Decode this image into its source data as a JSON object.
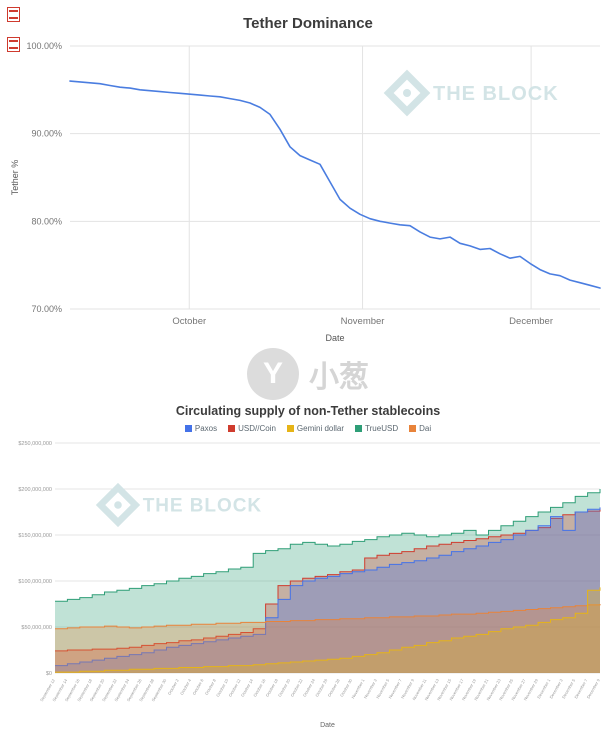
{
  "stamps": {
    "color": "#cf3a2e"
  },
  "watermark_center": {
    "text": "小葱",
    "logo_letter": "Y"
  },
  "chart_data": [
    {
      "type": "line",
      "title": "Tether Dominance",
      "xlabel": "Date",
      "ylabel": "Tether %",
      "watermark": "THE BLOCK",
      "line_color": "#4a7de0",
      "grid": true,
      "ylim": [
        70,
        100
      ],
      "y_ticks": [
        "100.00%",
        "90.00%",
        "80.00%",
        "70.00%"
      ],
      "x_ticks": [
        {
          "label": "October",
          "f": 0.225
        },
        {
          "label": "November",
          "f": 0.552
        },
        {
          "label": "December",
          "f": 0.87
        }
      ],
      "values": [
        96.0,
        95.9,
        95.8,
        95.7,
        95.5,
        95.3,
        95.2,
        95.0,
        94.9,
        94.8,
        94.7,
        94.6,
        94.5,
        94.4,
        94.3,
        94.2,
        94.0,
        93.8,
        93.5,
        93.0,
        92.2,
        90.5,
        88.5,
        87.5,
        87.0,
        86.5,
        84.5,
        82.5,
        81.5,
        80.8,
        80.3,
        80.0,
        79.8,
        79.6,
        79.5,
        78.8,
        78.2,
        78.0,
        78.2,
        77.5,
        77.2,
        76.8,
        76.9,
        76.3,
        75.8,
        76.0,
        75.2,
        74.5,
        74.0,
        73.8,
        73.3,
        73.0,
        72.7,
        72.4
      ]
    },
    {
      "type": "area",
      "title": "Circulating supply of non-Tether stablecoins",
      "xlabel": "Date",
      "unit": "USD",
      "watermark": "THE BLOCK",
      "grid": true,
      "ylim": [
        0,
        250000000
      ],
      "ymax_millions": 250,
      "y_ticks": [
        "$250,000,000",
        "$200,000,000",
        "$150,000,000",
        "$100,000,000",
        "$50,000,000",
        "$0"
      ],
      "legend": [
        {
          "label": "Paxos",
          "color": "#4472e8"
        },
        {
          "label": "USD//Coin",
          "color": "#cf3c2e"
        },
        {
          "label": "Gemini dollar",
          "color": "#e6b417"
        },
        {
          "label": "TrueUSD",
          "color": "#2e9e77"
        },
        {
          "label": "Dai",
          "color": "#e8833a"
        }
      ],
      "x_labels": [
        "September 12",
        "September 14",
        "September 16",
        "September 18",
        "September 20",
        "September 22",
        "September 24",
        "September 26",
        "September 28",
        "September 30",
        "October 2",
        "October 4",
        "October 6",
        "October 8",
        "October 10",
        "October 12",
        "October 14",
        "October 16",
        "October 18",
        "October 20",
        "October 22",
        "October 24",
        "October 26",
        "October 28",
        "October 30",
        "November 1",
        "November 3",
        "November 5",
        "November 7",
        "November 9",
        "November 11",
        "November 13",
        "November 15",
        "November 17",
        "November 19",
        "November 21",
        "November 23",
        "November 25",
        "November 27",
        "November 29",
        "December 1",
        "December 3",
        "December 5",
        "December 7",
        "December 9"
      ],
      "series": [
        {
          "name": "TrueUSD",
          "color": "#2e9e77",
          "values_millions": [
            78,
            80,
            82,
            85,
            88,
            90,
            92,
            95,
            97,
            100,
            103,
            105,
            108,
            110,
            113,
            115,
            130,
            133,
            135,
            140,
            142,
            140,
            138,
            140,
            143,
            145,
            148,
            150,
            152,
            150,
            148,
            150,
            152,
            155,
            150,
            155,
            160,
            165,
            170,
            175,
            180,
            185,
            192,
            196,
            200
          ]
        },
        {
          "name": "USD//Coin",
          "color": "#cf3c2e",
          "values_millions": [
            24,
            25,
            25,
            26,
            26,
            27,
            28,
            30,
            32,
            33,
            35,
            36,
            38,
            40,
            42,
            44,
            48,
            75,
            95,
            100,
            103,
            105,
            107,
            110,
            112,
            125,
            128,
            130,
            132,
            135,
            138,
            140,
            142,
            144,
            146,
            148,
            150,
            152,
            155,
            158,
            168,
            172,
            175,
            176,
            178
          ]
        },
        {
          "name": "Paxos",
          "color": "#4472e8",
          "values_millions": [
            8,
            10,
            12,
            14,
            16,
            18,
            20,
            22,
            25,
            28,
            30,
            32,
            34,
            36,
            38,
            40,
            42,
            60,
            80,
            95,
            100,
            103,
            105,
            108,
            110,
            112,
            115,
            118,
            120,
            122,
            125,
            128,
            132,
            135,
            138,
            142,
            145,
            150,
            155,
            160,
            170,
            155,
            175,
            178,
            180
          ]
        },
        {
          "name": "Dai",
          "color": "#e8833a",
          "values_millions": [
            48,
            49,
            50,
            50,
            51,
            50,
            49,
            50,
            51,
            52,
            52,
            53,
            53,
            54,
            54,
            55,
            55,
            56,
            56,
            57,
            57,
            58,
            58,
            59,
            59,
            60,
            60,
            61,
            61,
            62,
            62,
            63,
            64,
            64,
            65,
            66,
            67,
            68,
            69,
            70,
            71,
            72,
            73,
            74,
            75
          ]
        },
        {
          "name": "Gemini dollar",
          "color": "#e6b417",
          "values_millions": [
            1,
            1,
            2,
            2,
            3,
            3,
            4,
            4,
            5,
            5,
            6,
            6,
            7,
            7,
            8,
            8,
            9,
            10,
            11,
            12,
            13,
            14,
            15,
            16,
            18,
            20,
            22,
            25,
            28,
            30,
            33,
            35,
            38,
            40,
            42,
            45,
            48,
            50,
            52,
            55,
            58,
            60,
            65,
            90,
            93
          ]
        }
      ]
    }
  ]
}
